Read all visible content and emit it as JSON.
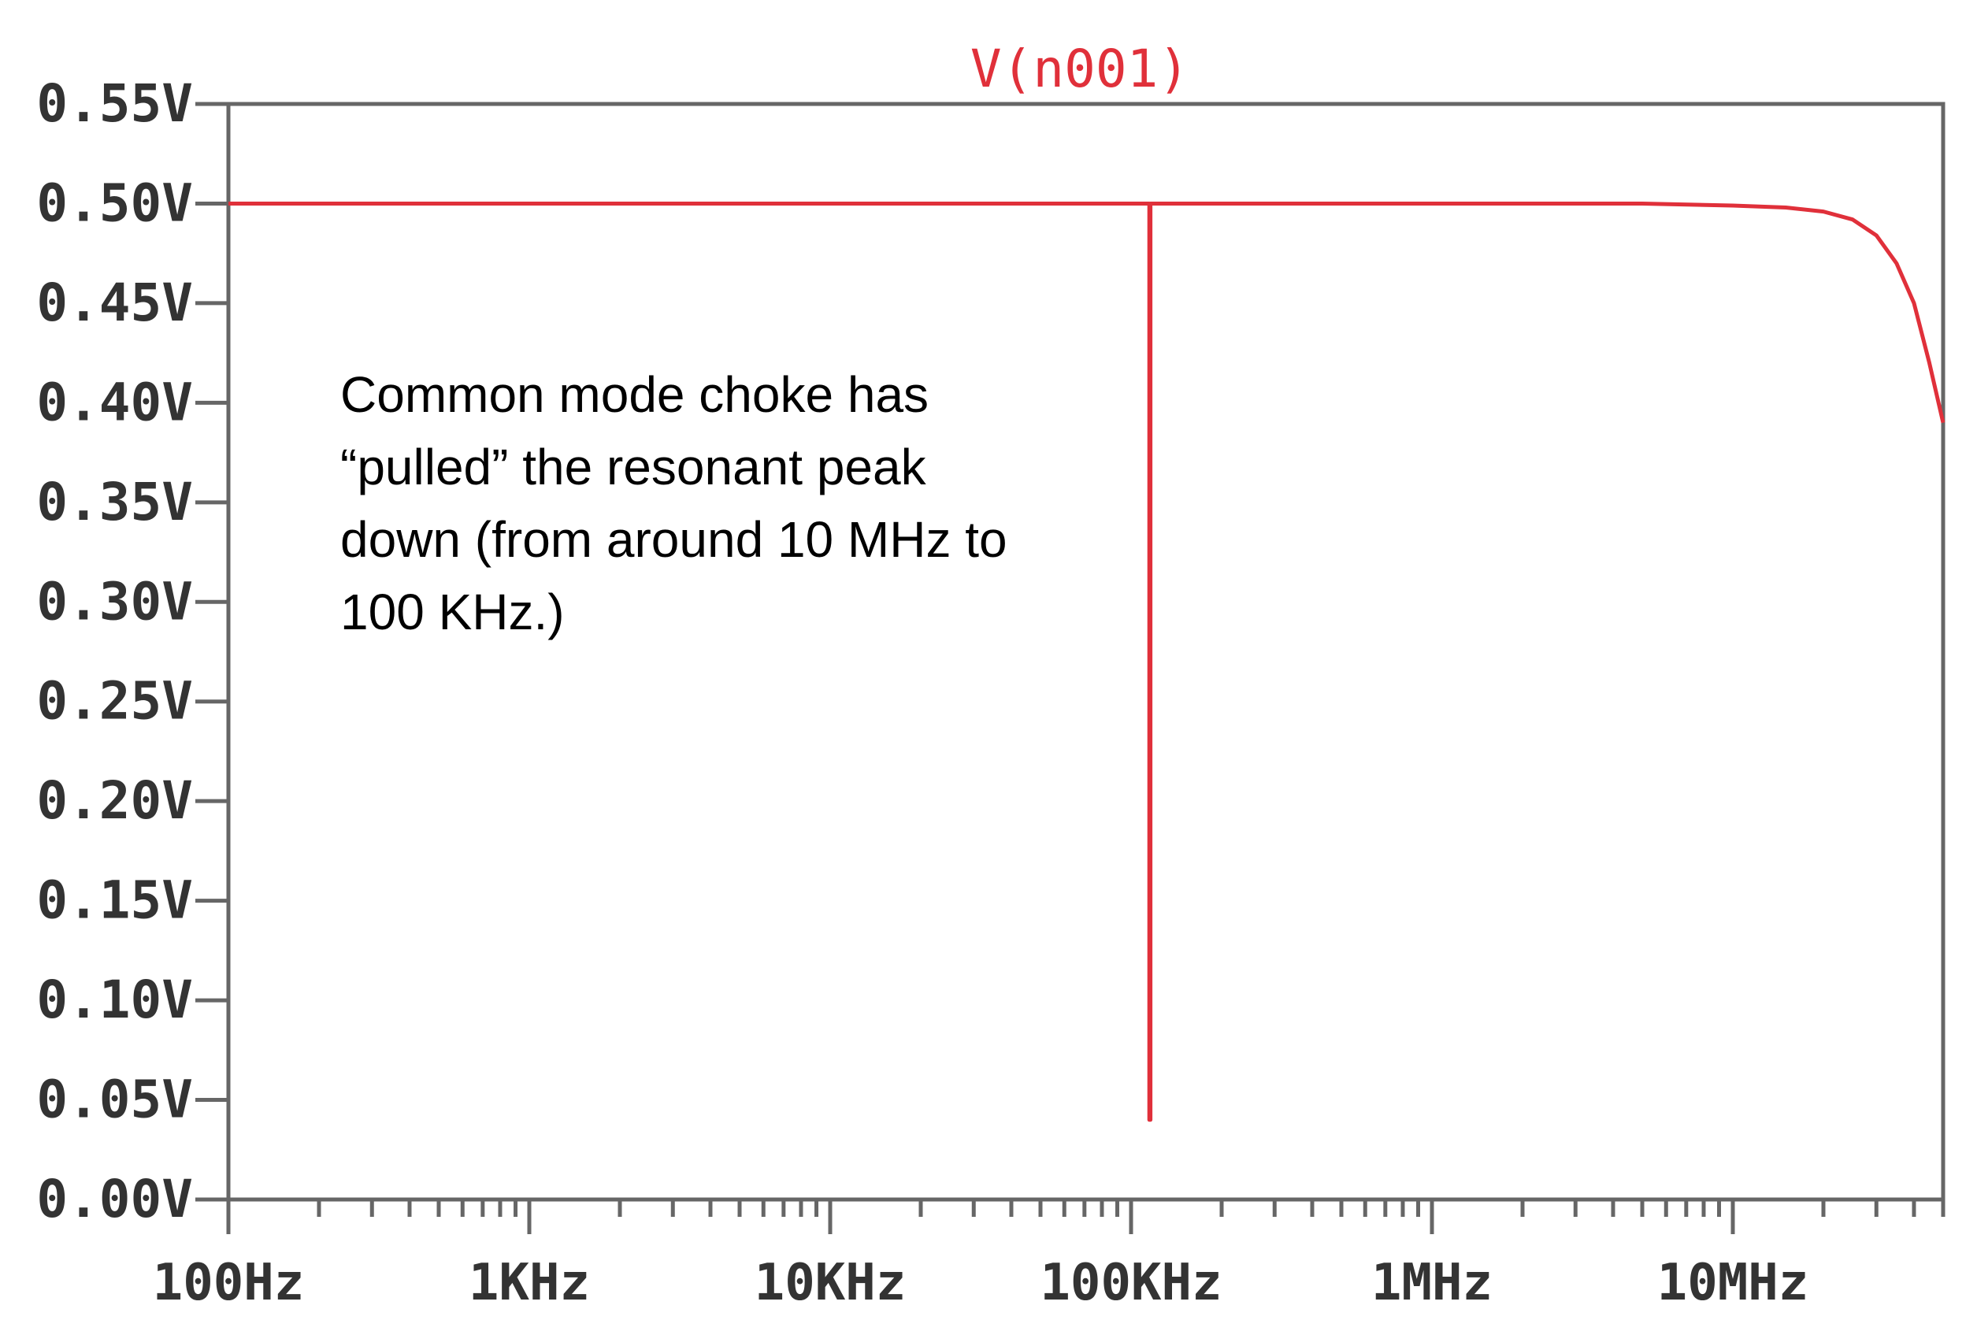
{
  "chart_data": {
    "type": "line",
    "title": "V(n001)",
    "xlabel": "",
    "ylabel": "",
    "x_scale": "log",
    "xlim_hz": [
      100,
      50000000
    ],
    "ylim_v": [
      0.0,
      0.55
    ],
    "grid": false,
    "x_tick_labels": [
      {
        "value_hz": 100,
        "label": "100Hz"
      },
      {
        "value_hz": 1000,
        "label": "1KHz"
      },
      {
        "value_hz": 10000,
        "label": "10KHz"
      },
      {
        "value_hz": 100000,
        "label": "100KHz"
      },
      {
        "value_hz": 1000000,
        "label": "1MHz"
      },
      {
        "value_hz": 10000000,
        "label": "10MHz"
      }
    ],
    "y_tick_labels": [
      {
        "value_v": 0.55,
        "label": "0.55V"
      },
      {
        "value_v": 0.5,
        "label": "0.50V"
      },
      {
        "value_v": 0.45,
        "label": "0.45V"
      },
      {
        "value_v": 0.4,
        "label": "0.40V"
      },
      {
        "value_v": 0.35,
        "label": "0.35V"
      },
      {
        "value_v": 0.3,
        "label": "0.30V"
      },
      {
        "value_v": 0.25,
        "label": "0.25V"
      },
      {
        "value_v": 0.2,
        "label": "0.20V"
      },
      {
        "value_v": 0.15,
        "label": "0.15V"
      },
      {
        "value_v": 0.1,
        "label": "0.10V"
      },
      {
        "value_v": 0.05,
        "label": "0.05V"
      },
      {
        "value_v": 0.0,
        "label": "0.00V"
      }
    ],
    "series": [
      {
        "name": "V(n001)",
        "color": "#e0303a",
        "x_hz": [
          100,
          1000,
          10000,
          100000,
          115000,
          115000,
          116000,
          116000,
          1000000,
          5000000,
          10000000,
          15000000,
          20000000,
          25000000,
          30000000,
          35000000,
          40000000,
          45000000,
          50000000
        ],
        "y_v": [
          0.5,
          0.5,
          0.5,
          0.5,
          0.5,
          0.04,
          0.04,
          0.5,
          0.5,
          0.5,
          0.499,
          0.498,
          0.496,
          0.492,
          0.484,
          0.47,
          0.45,
          0.42,
          0.39
        ]
      }
    ],
    "annotations": [
      "Common mode choke has\n“pulled” the resonant peak\ndown (from around 10 MHz to\n100 KHz.)"
    ]
  }
}
